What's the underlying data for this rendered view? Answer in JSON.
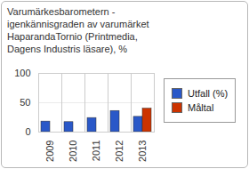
{
  "chart_data": {
    "type": "bar",
    "title": "Varumärkesbarometern - igenkännisgraden av varumärket HaparandaTornio (Printmedia, Dagens Industris läsare), %",
    "categories": [
      "2009",
      "2010",
      "2011",
      "2012",
      "2013"
    ],
    "series": [
      {
        "name": "Utfall (%)",
        "color": "#2a58c8",
        "values": [
          18,
          17,
          24,
          36,
          26
        ]
      },
      {
        "name": "Måltal",
        "color": "#cc3300",
        "values": [
          null,
          null,
          null,
          null,
          40
        ]
      }
    ],
    "ylim": [
      0,
      100
    ],
    "yticks": [
      0,
      50,
      100
    ],
    "grid": true,
    "legend": "right"
  }
}
